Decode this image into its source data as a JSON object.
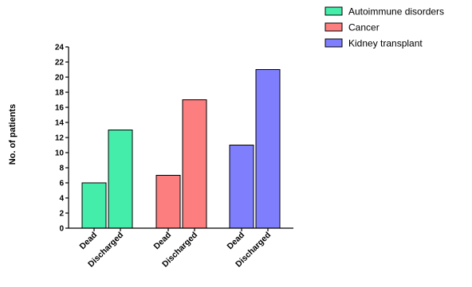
{
  "chart_data": {
    "type": "bar",
    "title": "",
    "xlabel": "",
    "ylabel": "No. of patients",
    "ylim": [
      0,
      24
    ],
    "yticks": [
      0,
      2,
      4,
      6,
      8,
      10,
      12,
      14,
      16,
      18,
      20,
      22,
      24
    ],
    "grid": false,
    "legend_position": "top-right",
    "groups": [
      {
        "name": "Autoimmune disorders",
        "color": "#44eeaa",
        "bars": [
          {
            "label": "Dead",
            "value": 6
          },
          {
            "label": "Discharged",
            "value": 13
          }
        ]
      },
      {
        "name": "Cancer",
        "color": "#fc7e7e",
        "bars": [
          {
            "label": "Dead",
            "value": 7
          },
          {
            "label": "Discharged",
            "value": 17
          }
        ]
      },
      {
        "name": "Kidney transplant",
        "color": "#7f7ffd",
        "bars": [
          {
            "label": "Dead",
            "value": 11
          },
          {
            "label": "Discharged",
            "value": 21
          }
        ]
      }
    ]
  }
}
